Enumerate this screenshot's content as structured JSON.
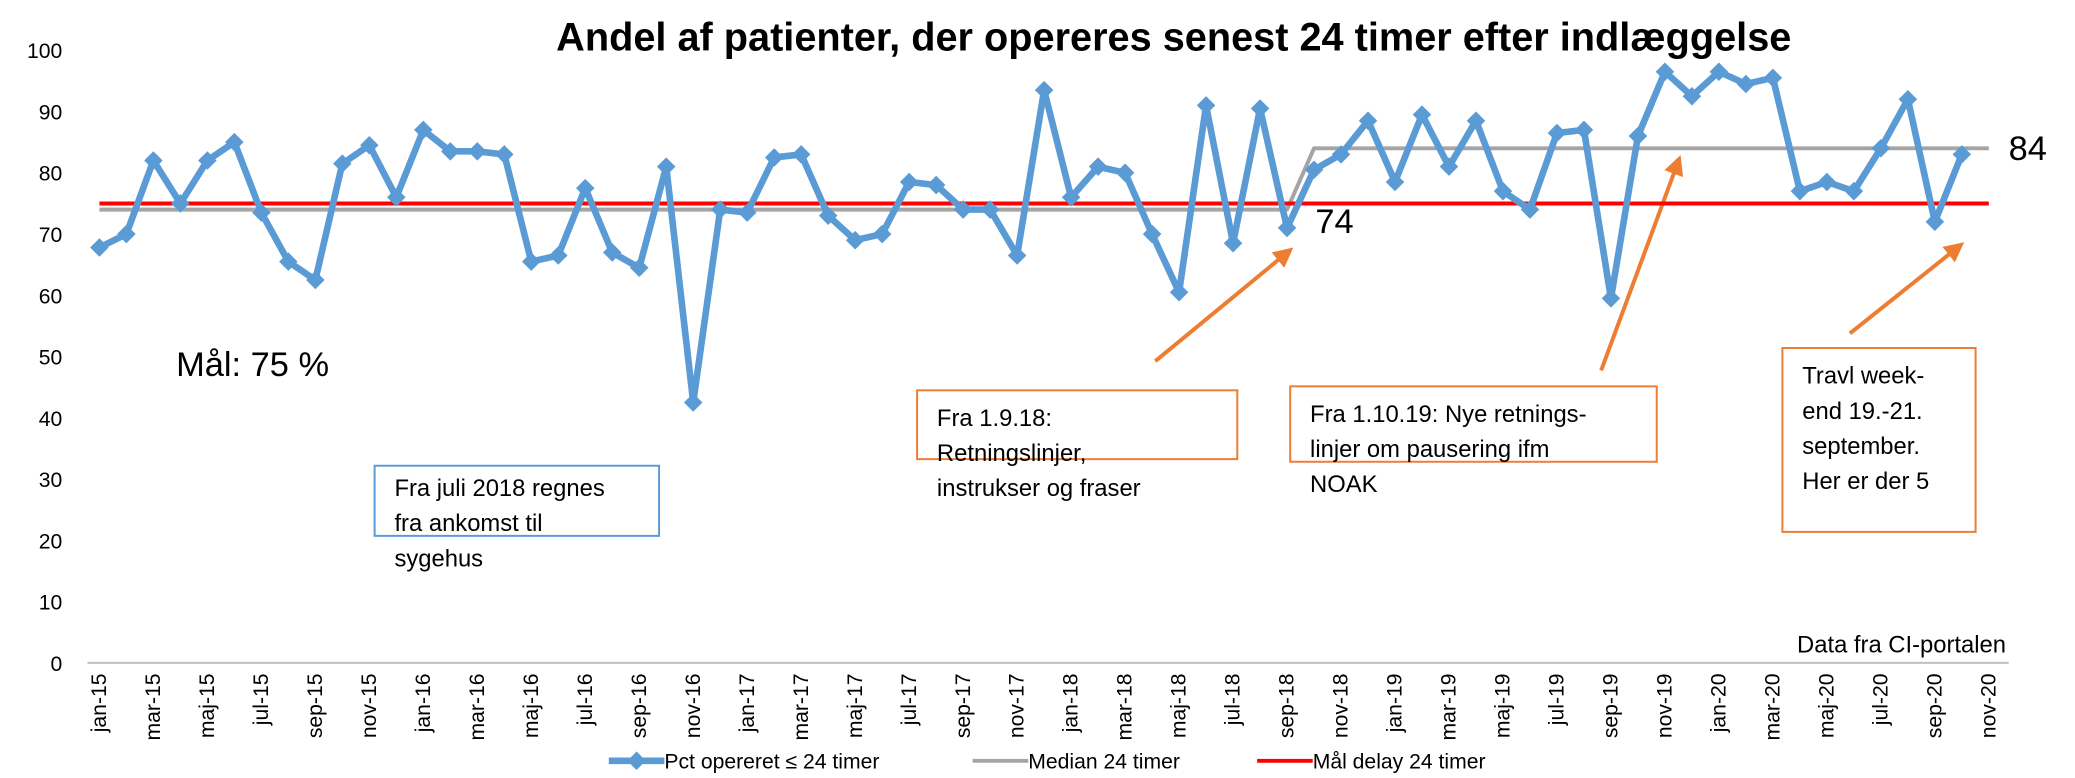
{
  "chart_data": {
    "type": "line",
    "title": "Andel af patienter, der opereres senest 24 timer efter indlæggelse",
    "categories": [
      "jan-15",
      null,
      "mar-15",
      null,
      "maj-15",
      null,
      "jul-15",
      null,
      "sep-15",
      null,
      "nov-15",
      null,
      "jan-16",
      null,
      "mar-16",
      null,
      "maj-16",
      null,
      "jul-16",
      null,
      "sep-16",
      null,
      "nov-16",
      null,
      "jan-17",
      null,
      "mar-17",
      null,
      "maj-17",
      null,
      "jul-17",
      null,
      "sep-17",
      null,
      "nov-17",
      null,
      "jan-18",
      null,
      "mar-18",
      null,
      "maj-18",
      null,
      "jul-18",
      null,
      "sep-18",
      null,
      "nov-18",
      null,
      "jan-19",
      null,
      "mar-19",
      null,
      "maj-19",
      null,
      "jul-19",
      null,
      "sep-19",
      null,
      "nov-19",
      null,
      "jan-20",
      null,
      "mar-20",
      null,
      "maj-20",
      null,
      "jul-20",
      null,
      "sep-20",
      null,
      "nov-20"
    ],
    "series": [
      {
        "name": "Pct opereret ≤  24 timer",
        "color": "#5b9bd5",
        "marker": "diamond",
        "values": [
          67.8,
          70,
          82,
          75,
          82,
          85,
          73.5,
          65.5,
          62.5,
          81.5,
          84.5,
          76,
          87,
          83.5,
          83.5,
          83,
          65.5,
          66.5,
          77.5,
          67,
          64.5,
          81,
          42.5,
          74,
          73.5,
          82.5,
          83,
          73,
          69,
          70,
          78.5,
          78,
          74,
          74,
          66.5,
          93.5,
          76,
          81,
          80,
          70,
          60.5,
          91,
          68.5,
          90.5,
          71,
          80.5,
          83,
          88.5,
          78.5,
          89.5,
          81,
          88.5,
          77,
          74,
          86.5,
          87,
          59.5,
          86,
          96.5,
          92.5,
          96.5,
          94.5,
          95.5,
          77,
          78.5,
          77,
          84,
          92,
          72,
          83,
          null
        ]
      },
      {
        "name": "Median 24 timer",
        "color": "#a5a5a5",
        "values": [
          74,
          74,
          74,
          74,
          74,
          74,
          74,
          74,
          74,
          74,
          74,
          74,
          74,
          74,
          74,
          74,
          74,
          74,
          74,
          74,
          74,
          74,
          74,
          74,
          74,
          74,
          74,
          74,
          74,
          74,
          74,
          74,
          74,
          74,
          74,
          74,
          74,
          74,
          74,
          74,
          74,
          74,
          74,
          74,
          74,
          84,
          84,
          84,
          84,
          84,
          84,
          84,
          84,
          84,
          84,
          84,
          84,
          84,
          84,
          84,
          84,
          84,
          84,
          84,
          84,
          84,
          84,
          84,
          84,
          84,
          84
        ]
      },
      {
        "name": "Mål delay 24 timer",
        "color": "#ff0000",
        "values": [
          75,
          75,
          75,
          75,
          75,
          75,
          75,
          75,
          75,
          75,
          75,
          75,
          75,
          75,
          75,
          75,
          75,
          75,
          75,
          75,
          75,
          75,
          75,
          75,
          75,
          75,
          75,
          75,
          75,
          75,
          75,
          75,
          75,
          75,
          75,
          75,
          75,
          75,
          75,
          75,
          75,
          75,
          75,
          75,
          75,
          75,
          75,
          75,
          75,
          75,
          75,
          75,
          75,
          75,
          75,
          75,
          75,
          75,
          75,
          75,
          75,
          75,
          75,
          75,
          75,
          75,
          75,
          75,
          75,
          75,
          75
        ]
      }
    ],
    "ylim": [
      0,
      100
    ],
    "yticks": [
      0,
      10,
      20,
      30,
      40,
      50,
      60,
      70,
      80,
      90,
      100
    ],
    "grid": false,
    "annotations": {
      "goal": "Mål: 75 %",
      "median_before": "74",
      "median_after": "84",
      "source": "Data fra CI-portalen",
      "box1": [
        "Fra juli 2018 regnes",
        "fra ankomst til",
        "sygehus"
      ],
      "box2": [
        "Fra 1.9.18:",
        "Retningslinjer,",
        "instrukser og fraser"
      ],
      "box3": [
        "Fra 1.10.19: Nye retnings-",
        "linjer om pausering ifm",
        "NOAK"
      ],
      "box4": [
        "Travl week-",
        "end 19.-21.",
        "september.",
        "Her  er der 5"
      ]
    }
  }
}
